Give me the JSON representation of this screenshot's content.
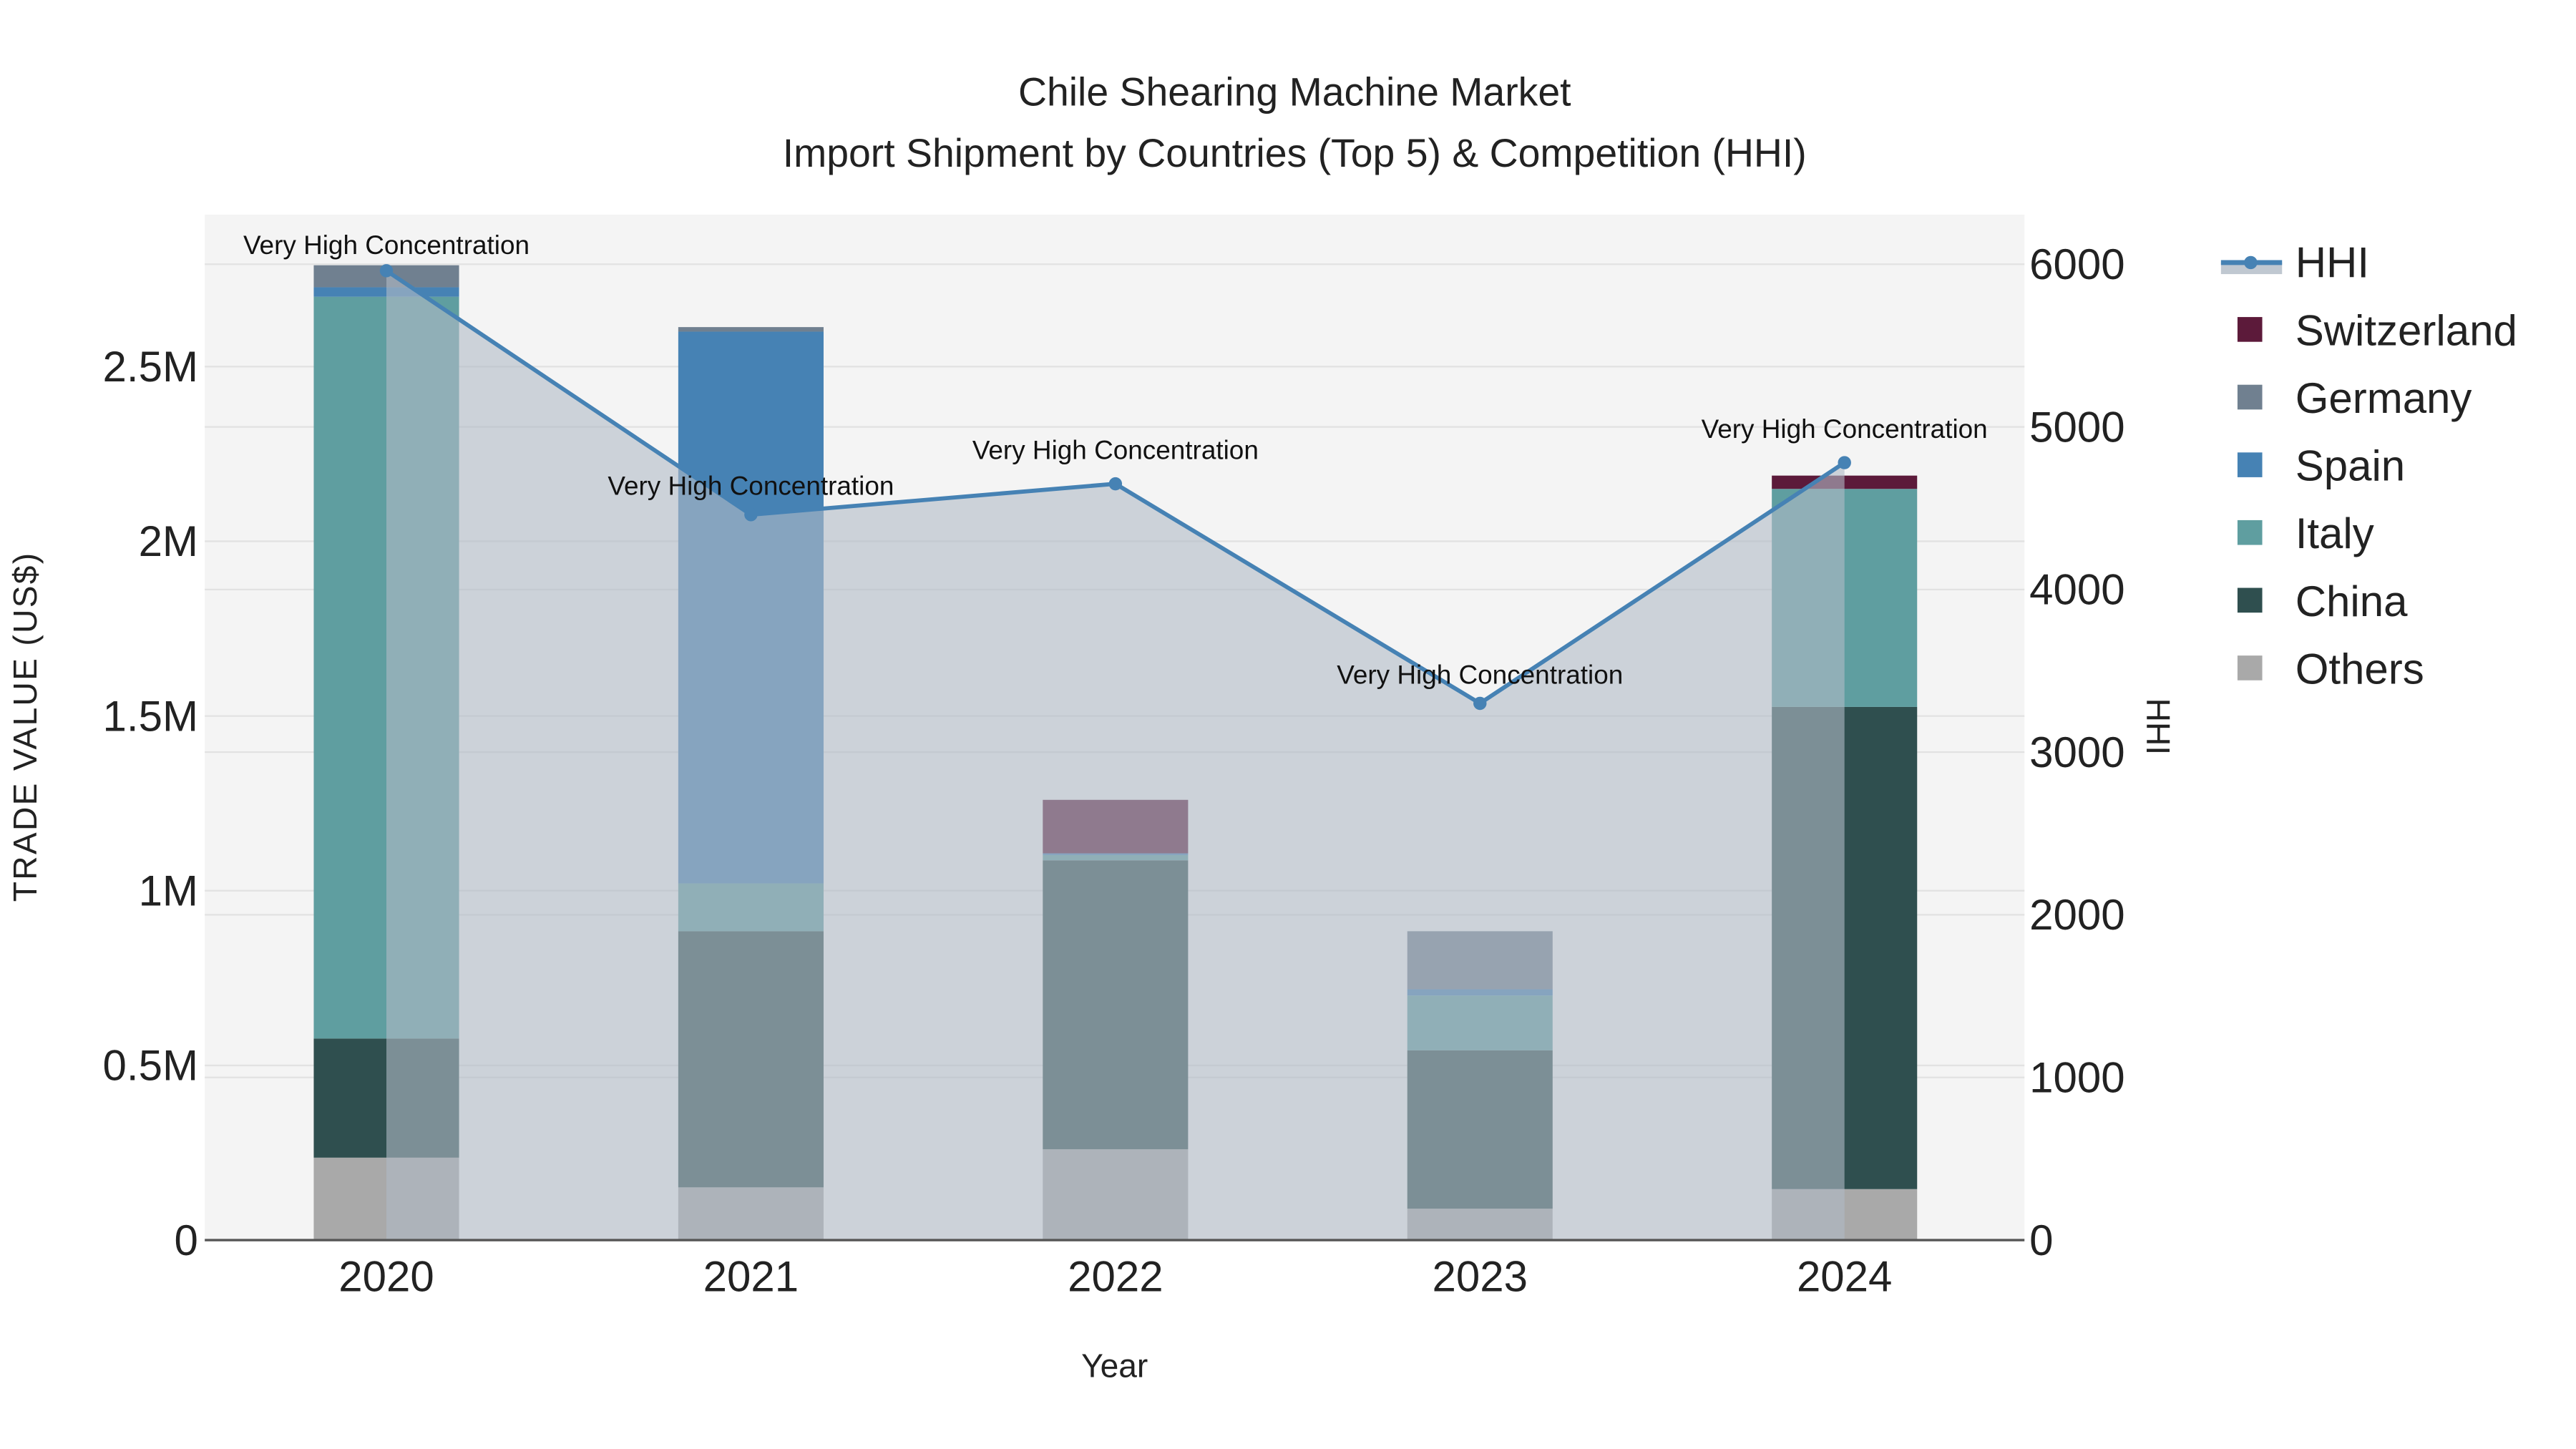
{
  "chart_data": {
    "type": "bar",
    "title": "Chile Shearing Machine Market",
    "subtitle": "Import Shipment by Countries (Top 5) & Competition (HHI)",
    "xlabel": "Year",
    "ylabel": "TRADE VALUE (US$)",
    "y2label": "HHI",
    "categories": [
      "2020",
      "2021",
      "2022",
      "2023",
      "2024"
    ],
    "ylim": [
      0,
      2900000
    ],
    "y2lim": [
      0,
      6300
    ],
    "yticks": [
      {
        "v": 0,
        "label": "0"
      },
      {
        "v": 500000,
        "label": "0.5M"
      },
      {
        "v": 1000000,
        "label": "1M"
      },
      {
        "v": 1500000,
        "label": "1.5M"
      },
      {
        "v": 2000000,
        "label": "2M"
      },
      {
        "v": 2500000,
        "label": "2.5M"
      }
    ],
    "y2ticks": [
      {
        "v": 0,
        "label": "0"
      },
      {
        "v": 1000,
        "label": "1000"
      },
      {
        "v": 2000,
        "label": "2000"
      },
      {
        "v": 3000,
        "label": "3000"
      },
      {
        "v": 4000,
        "label": "4000"
      },
      {
        "v": 5000,
        "label": "5000"
      },
      {
        "v": 6000,
        "label": "6000"
      }
    ],
    "stacking": "stacked",
    "series": [
      {
        "name": "Others",
        "color": "#a9a9a9",
        "values": [
          236000,
          151000,
          260000,
          90000,
          146000
        ]
      },
      {
        "name": "China",
        "color": "#2f4f4f",
        "values": [
          341000,
          733000,
          827000,
          453000,
          1380000
        ]
      },
      {
        "name": "Italy",
        "color": "#5f9ea0",
        "values": [
          2123000,
          137000,
          15000,
          157000,
          624000
        ]
      },
      {
        "name": "Spain",
        "color": "#4682b4",
        "values": [
          27000,
          1579000,
          5000,
          18000,
          0
        ]
      },
      {
        "name": "Germany",
        "color": "#708090",
        "values": [
          63000,
          13000,
          0,
          166000,
          0
        ]
      },
      {
        "name": "Switzerland",
        "color": "#5c1a3a",
        "values": [
          0,
          0,
          153000,
          0,
          38000
        ]
      }
    ],
    "hhi": {
      "name": "HHI",
      "color": "#4682b4",
      "values": [
        5960,
        4460,
        4650,
        3300,
        4780
      ],
      "annotations": [
        "Very High Concentration",
        "Very High Concentration",
        "Very High Concentration",
        "Very High Concentration",
        "Very High Concentration"
      ]
    },
    "legend": {
      "placement": "right",
      "order": [
        "HHI",
        "Switzerland",
        "Germany",
        "Spain",
        "Italy",
        "China",
        "Others"
      ]
    },
    "grid": true
  }
}
